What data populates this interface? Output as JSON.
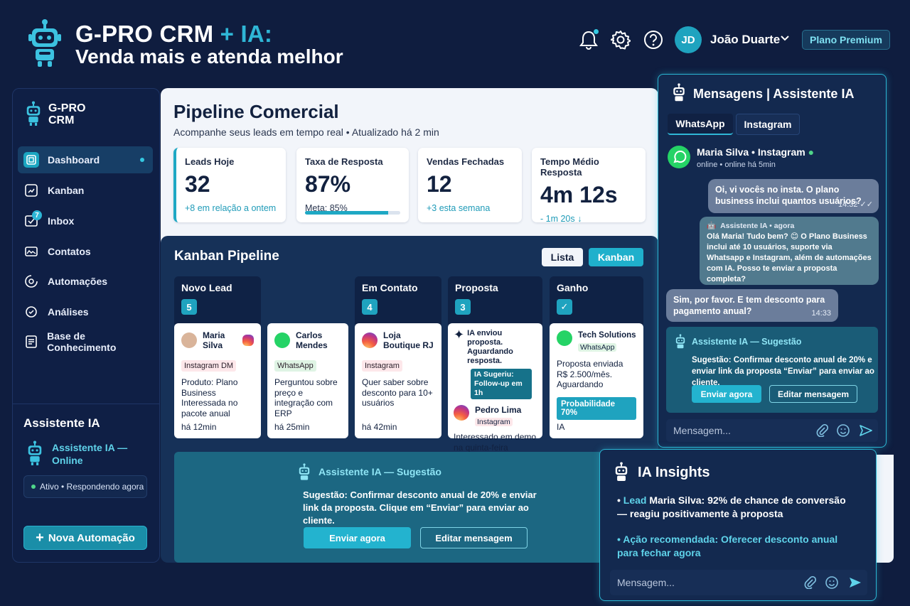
{
  "header": {
    "title_main": "G-PRO CRM",
    "title_accent": "+ IA:",
    "subtitle": "Venda mais e atenda melhor",
    "user_initials": "JD",
    "user_name": "João Duarte",
    "plan": "Plano Premium"
  },
  "sidebar": {
    "brand": "G-PRO CRM",
    "items": [
      {
        "label": "Dashboard",
        "icon": "dashboard-icon"
      },
      {
        "label": "Kanban",
        "icon": "kanban-icon"
      },
      {
        "label": "Inbox",
        "icon": "inbox-icon",
        "badge": "7"
      },
      {
        "label": "Contatos",
        "icon": "contacts-icon"
      },
      {
        "label": "Automações",
        "icon": "automation-icon"
      },
      {
        "label": "Análises",
        "icon": "analytics-icon"
      },
      {
        "label": "Base de Conhecimento",
        "icon": "knowledge-base-icon"
      }
    ],
    "assistant": {
      "title": "Assistente IA",
      "name": "Assistente IA — Online",
      "status": "Ativo • Respondendo agora"
    },
    "new_automation": "Nova Automação"
  },
  "pipeline": {
    "title": "Pipeline Comercial",
    "subtitle": "Acompanhe seus leads em tempo real • Atualizado há 2 min",
    "kpis": [
      {
        "label": "Leads Hoje",
        "value": "32",
        "note": "+8 em relação a ontem"
      },
      {
        "label": "Taxa de Resposta",
        "value": "87%",
        "note": "Meta: 85%",
        "progress": 0.87
      },
      {
        "label": "Vendas Fechadas",
        "value": "12",
        "note": "+3 esta semana"
      },
      {
        "label": "Tempo Médio Resposta",
        "value": "4m 12s",
        "note": "- 1m 20s ↓"
      }
    ]
  },
  "kanban": {
    "title": "Kanban Pipeline",
    "view_list": "Lista",
    "view_kanban": "Kanban",
    "columns": [
      {
        "title": "Novo Lead",
        "count": "5"
      },
      {
        "title": "Em Contato",
        "count": "4"
      },
      {
        "title": "Proposta",
        "count": "3"
      },
      {
        "title": "Ganho",
        "count": "✓"
      }
    ],
    "cards": [
      {
        "name": "Maria Silva",
        "tag": "Instagram DM",
        "desc": "Produto: Plano Business Interessada no pacote anual",
        "time": "há 12min"
      },
      {
        "name": "Carlos Mendes",
        "tag": "WhatsApp",
        "desc": "Perguntou sobre preço e integração com ERP",
        "time": "há 25min"
      },
      {
        "name": "Loja Boutique RJ",
        "tag": "Instagram",
        "desc": "Quer saber sobre desconto para 10+ usuários",
        "time": "há 42min"
      },
      {
        "ai_note": "IA enviou proposta. Aguardando resposta.",
        "ai_suggest": "IA Sugeriu: Follow-up em 1h",
        "name": "Pedro Lima",
        "tag": "Instagram",
        "desc": "Interessado em demo na quinta-feira"
      },
      {
        "name": "Tech Solutions",
        "tag": "WhatsApp",
        "desc": "Proposta enviada R$ 2.500/mês. Aguardando",
        "prob": "Probabilidade 70%",
        "time": "IA"
      }
    ],
    "suggestion": {
      "title": "Assistente IA — Sugestão",
      "text": "Sugestão: Confirmar desconto anual de 20% e enviar link da proposta. Clique em “Enviar” para enviar ao cliente.",
      "send": "Enviar agora",
      "edit": "Editar mensagem"
    }
  },
  "messages": {
    "title": "Mensagens | Assistente IA",
    "tab_whatsapp": "WhatsApp",
    "tab_instagram": "Instagram",
    "contact": "Maria Silva • Instagram",
    "contact_status": "online • online há 5min",
    "bubble1": "Oi, vi vocês no insta. O plano business inclui quantos usuários?",
    "bubble1_time": "14:32 ✓✓",
    "bubble2_head": "Assistente IA • agora",
    "bubble2": "Olá Maria! Tudo bem? 😊 O Plano Business inclui até 10 usuários, suporte via Whatsapp e Instagram, além de automações com IA. Posso te enviar a proposta completa?",
    "bubble3": "Sim, por favor. E tem desconto para pagamento anual?",
    "bubble3_time": "14:33",
    "sug_title": "Assistente IA — Sugestão",
    "sug_text": "Sugestão: Confirmar desconto anual de 20% e enviar link da proposta “Enviar” para enviar ao cliente.",
    "sug_send": "Enviar agora",
    "sug_edit": "Editar mensagem",
    "input_placeholder": "Mensagem..."
  },
  "insights": {
    "title": "IA Insights",
    "item1_prefix": "Lead",
    "item1": "Maria Silva: 92% de chance de conversão — reagiu positivamente à proposta",
    "item2": "Ação recomendada: Oferecer desconto anual para fechar agora",
    "input_placeholder": "Mensagem..."
  },
  "colors": {
    "background": "#0f1d3f",
    "accent": "#1fb0cc",
    "panel": "#13294f",
    "light_panel": "#f2f5fa"
  }
}
